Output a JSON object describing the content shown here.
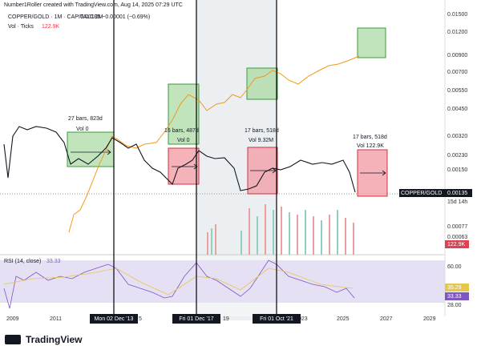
{
  "header": {
    "credit": "Number1Roller created with TradingView.com, Aug 14, 2025 07:29 UTC",
    "symbol": "COPPER/GOLD · 1M · CAPITALCOM",
    "ohlc": "0.00135 −0.00001 (−0.69%)",
    "volume_label": "Vol · Ticks",
    "volume_value": "122.9K"
  },
  "price_axis": [
    "0.01500",
    "0.01200",
    "0.00900",
    "0.00700",
    "0.00550",
    "0.00450",
    "0.00320",
    "0.00230",
    "0.00150",
    "0.00077",
    "0.00063"
  ],
  "price_tags": {
    "symbol": "COPPER/GOLD",
    "last": "0.00135",
    "countdown": "15d 14h",
    "volume": "122.9K"
  },
  "rsi": {
    "label": "RSI (14, close)",
    "value": "33.33",
    "axis": [
      "60.00",
      "28.00"
    ],
    "tags": [
      "35.29",
      "33.33"
    ]
  },
  "measurements": [
    {
      "bars": "27 bars, 823d",
      "vol": "Vol 0"
    },
    {
      "bars": "16 bars, 487d",
      "vol": "Vol 0"
    },
    {
      "bars": "17 bars, 518d",
      "vol": "Vol 9.32M"
    },
    {
      "bars": "17 bars, 518d",
      "vol": "Vol 122.9K"
    }
  ],
  "time_axis": [
    "2009",
    "2011",
    "5",
    "19",
    "023",
    "2025",
    "2027",
    "2029"
  ],
  "cursor_dates": [
    "Mon 02 Dec '13",
    "Fri 01 Dec '17",
    "Fri 01 Oct '21"
  ],
  "footer": "TradingView"
}
